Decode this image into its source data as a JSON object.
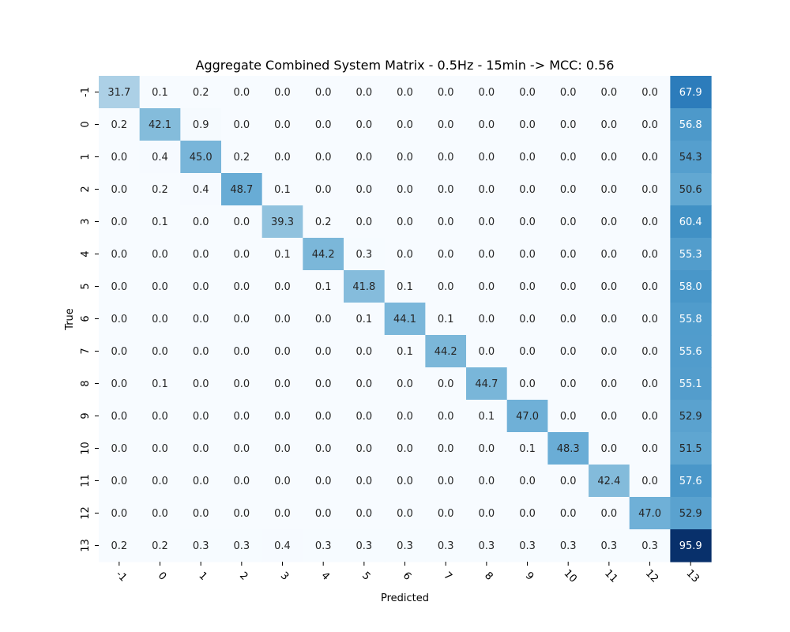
{
  "chart_data": {
    "type": "heatmap",
    "title": "Aggregate Combined System Matrix - 0.5Hz - 15min -> MCC: 0.56",
    "xlabel": "Predicted",
    "ylabel": "True",
    "x_categories": [
      "-1",
      "0",
      "1",
      "2",
      "3",
      "4",
      "5",
      "6",
      "7",
      "8",
      "9",
      "10",
      "11",
      "12",
      "13"
    ],
    "y_categories": [
      "-1",
      "0",
      "1",
      "2",
      "3",
      "4",
      "5",
      "6",
      "7",
      "8",
      "9",
      "10",
      "11",
      "12",
      "13"
    ],
    "values": [
      [
        31.7,
        0.1,
        0.2,
        0.0,
        0.0,
        0.0,
        0.0,
        0.0,
        0.0,
        0.0,
        0.0,
        0.0,
        0.0,
        0.0,
        67.9
      ],
      [
        0.2,
        42.1,
        0.9,
        0.0,
        0.0,
        0.0,
        0.0,
        0.0,
        0.0,
        0.0,
        0.0,
        0.0,
        0.0,
        0.0,
        56.8
      ],
      [
        0.0,
        0.4,
        45.0,
        0.2,
        0.0,
        0.0,
        0.0,
        0.0,
        0.0,
        0.0,
        0.0,
        0.0,
        0.0,
        0.0,
        54.3
      ],
      [
        0.0,
        0.2,
        0.4,
        48.7,
        0.1,
        0.0,
        0.0,
        0.0,
        0.0,
        0.0,
        0.0,
        0.0,
        0.0,
        0.0,
        50.6
      ],
      [
        0.0,
        0.1,
        0.0,
        0.0,
        39.3,
        0.2,
        0.0,
        0.0,
        0.0,
        0.0,
        0.0,
        0.0,
        0.0,
        0.0,
        60.4
      ],
      [
        0.0,
        0.0,
        0.0,
        0.0,
        0.1,
        44.2,
        0.3,
        0.0,
        0.0,
        0.0,
        0.0,
        0.0,
        0.0,
        0.0,
        55.3
      ],
      [
        0.0,
        0.0,
        0.0,
        0.0,
        0.0,
        0.1,
        41.8,
        0.1,
        0.0,
        0.0,
        0.0,
        0.0,
        0.0,
        0.0,
        58.0
      ],
      [
        0.0,
        0.0,
        0.0,
        0.0,
        0.0,
        0.0,
        0.1,
        44.1,
        0.1,
        0.0,
        0.0,
        0.0,
        0.0,
        0.0,
        55.8
      ],
      [
        0.0,
        0.0,
        0.0,
        0.0,
        0.0,
        0.0,
        0.0,
        0.1,
        44.2,
        0.0,
        0.0,
        0.0,
        0.0,
        0.0,
        55.6
      ],
      [
        0.0,
        0.1,
        0.0,
        0.0,
        0.0,
        0.0,
        0.0,
        0.0,
        0.0,
        44.7,
        0.0,
        0.0,
        0.0,
        0.0,
        55.1
      ],
      [
        0.0,
        0.0,
        0.0,
        0.0,
        0.0,
        0.0,
        0.0,
        0.0,
        0.0,
        0.1,
        47.0,
        0.0,
        0.0,
        0.0,
        52.9
      ],
      [
        0.0,
        0.0,
        0.0,
        0.0,
        0.0,
        0.0,
        0.0,
        0.0,
        0.0,
        0.0,
        0.1,
        48.3,
        0.0,
        0.0,
        51.5
      ],
      [
        0.0,
        0.0,
        0.0,
        0.0,
        0.0,
        0.0,
        0.0,
        0.0,
        0.0,
        0.0,
        0.0,
        0.0,
        42.4,
        0.0,
        57.6
      ],
      [
        0.0,
        0.0,
        0.0,
        0.0,
        0.0,
        0.0,
        0.0,
        0.0,
        0.0,
        0.0,
        0.0,
        0.0,
        0.0,
        47.0,
        52.9
      ],
      [
        0.2,
        0.2,
        0.3,
        0.3,
        0.4,
        0.3,
        0.3,
        0.3,
        0.3,
        0.3,
        0.3,
        0.3,
        0.3,
        0.3,
        95.9
      ]
    ],
    "colormap": "Blues",
    "value_range": [
      0,
      95.9
    ],
    "colorbar": false,
    "grid": false
  }
}
